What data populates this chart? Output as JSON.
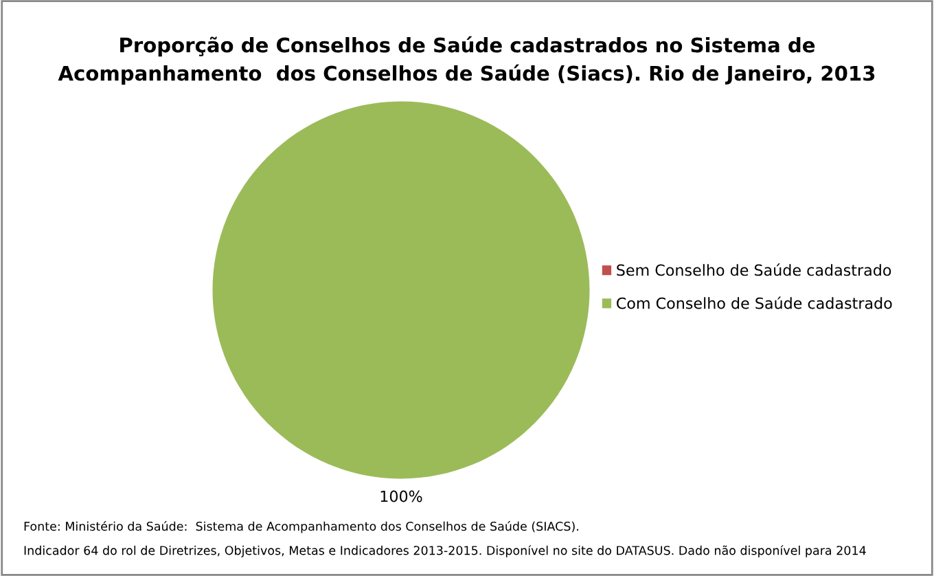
{
  "chart_data": {
    "type": "pie",
    "title": "Proporção de Conselhos de Saúde cadastrados no Sistema de\nAcompanhamento  dos Conselhos de Saúde (Siacs). Rio de Janeiro, 2013",
    "categories": [
      "Sem Conselho de Saúde cadastrado",
      "Com Conselho de Saúde cadastrado"
    ],
    "values": [
      0,
      100
    ],
    "colors": [
      "#c0504d",
      "#9bbb59"
    ],
    "value_labels": [
      null,
      "100%"
    ],
    "legend": "right",
    "annotations": [
      "Fonte: Ministério da Saúde:  Sistema de Acompanhamento dos Conselhos de Saúde (SIACS).",
      "Indicador 64 do rol de Diretrizes, Objetivos, Metas e Indicadores 2013-2015. Disponível no site do DATASUS. Dado não disponível para 2014"
    ]
  }
}
